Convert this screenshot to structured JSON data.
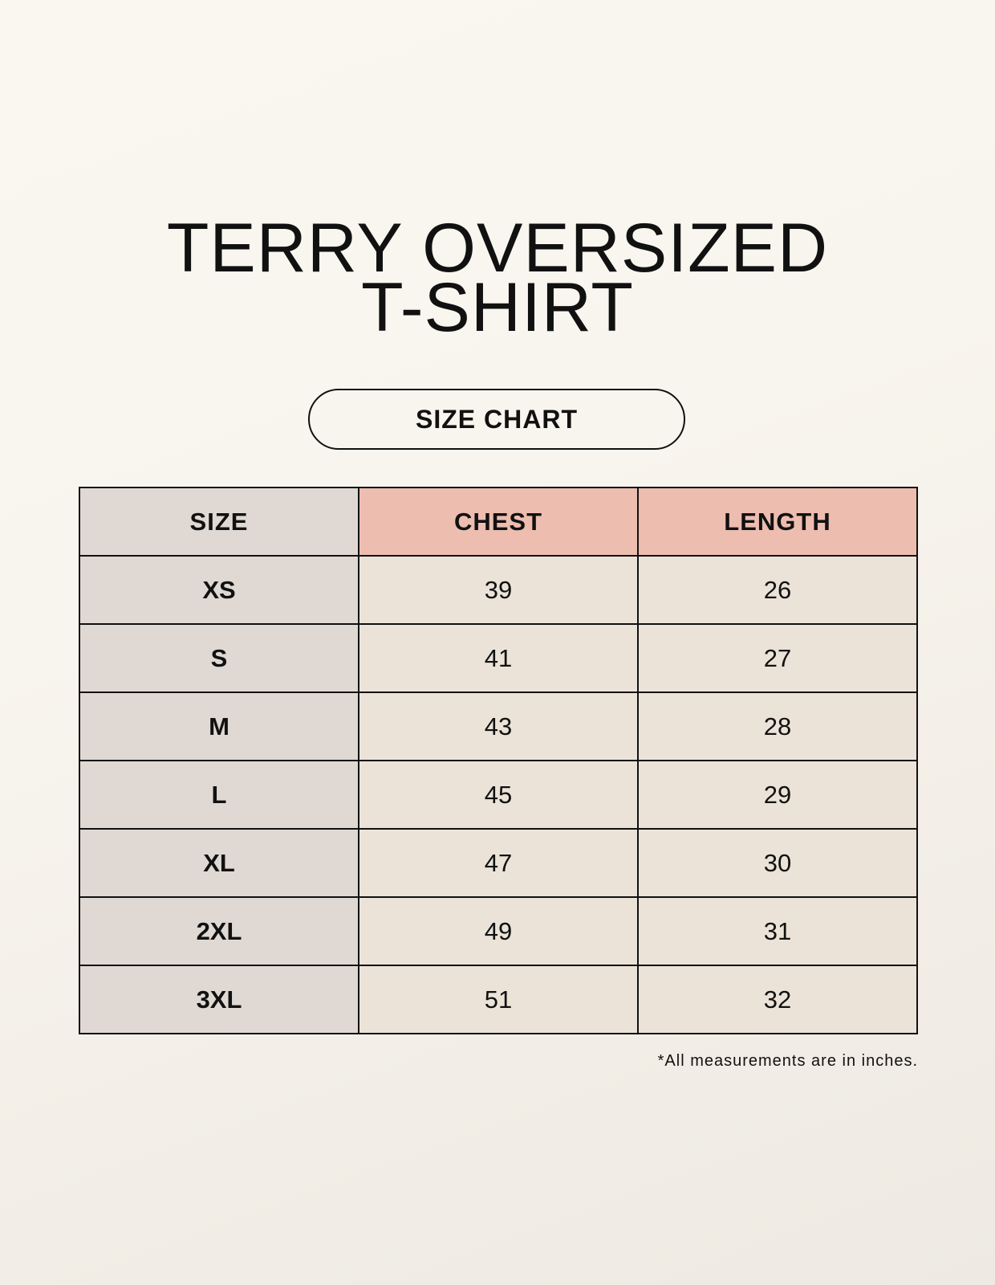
{
  "title_line1": "TERRY OVERSIZED",
  "title_line2": "T-SHIRT",
  "badge": "SIZE CHART",
  "table": {
    "headers": [
      "SIZE",
      "CHEST",
      "LENGTH"
    ],
    "rows": [
      [
        "XS",
        "39",
        "26"
      ],
      [
        "S",
        "41",
        "27"
      ],
      [
        "M",
        "43",
        "28"
      ],
      [
        "L",
        "45",
        "29"
      ],
      [
        "XL",
        "47",
        "30"
      ],
      [
        "2XL",
        "49",
        "31"
      ],
      [
        "3XL",
        "51",
        "32"
      ]
    ]
  },
  "note": "*All measurements are in inches.",
  "colors": {
    "size_column": "#e0d9d3",
    "header_accent": "#edbdb0",
    "cell": "#ebe3d8"
  }
}
